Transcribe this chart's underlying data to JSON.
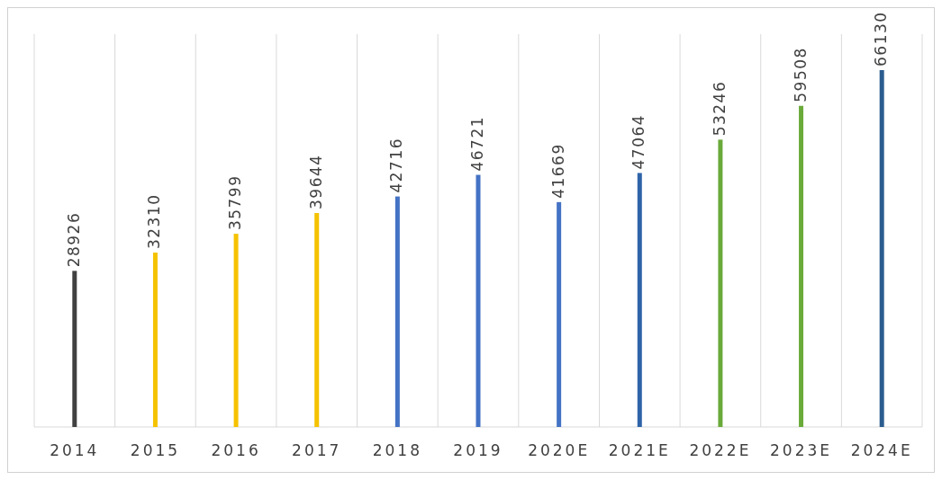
{
  "chart_data": {
    "type": "bar",
    "categories": [
      "2014",
      "2015",
      "2016",
      "2017",
      "2018",
      "2019",
      "2020E",
      "2021E",
      "2022E",
      "2023E",
      "2024E"
    ],
    "values": [
      28926,
      32310,
      35799,
      39644,
      42716,
      46721,
      41669,
      47064,
      53246,
      59508,
      66130
    ],
    "colors": [
      "#404040",
      "#f5c200",
      "#f5c200",
      "#f5c200",
      "#4472c4",
      "#4472c4",
      "#4472c4",
      "#2e63a8",
      "#6aaa3a",
      "#6aaa3a",
      "#2b5c8f"
    ],
    "data_labels": true,
    "grid": "x"
  }
}
